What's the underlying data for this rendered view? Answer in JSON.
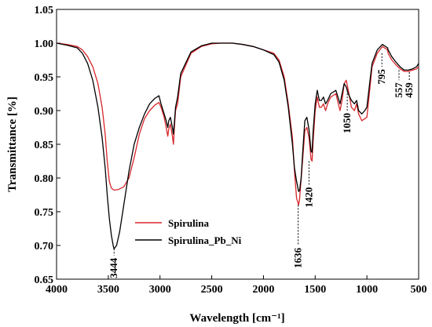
{
  "chart_data": {
    "type": "line",
    "xlabel": "Wavelength [cm⁻¹]",
    "ylabel": "Transmittance [%]",
    "xlim": [
      4000,
      500
    ],
    "ylim": [
      0.65,
      1.05
    ],
    "x_reversed": true,
    "xticks": [
      4000,
      3500,
      3000,
      2500,
      2000,
      1500,
      1000,
      500
    ],
    "yticks": [
      0.65,
      0.7,
      0.75,
      0.8,
      0.85,
      0.9,
      0.95,
      1.0,
      1.05
    ],
    "grid": false,
    "legend_position": "lower-left",
    "series": [
      {
        "name": "Spirulina",
        "color": "#d8262b",
        "points": [
          [
            4000,
            1.0
          ],
          [
            3900,
            0.998
          ],
          [
            3800,
            0.995
          ],
          [
            3750,
            0.99
          ],
          [
            3700,
            0.98
          ],
          [
            3650,
            0.965
          ],
          [
            3600,
            0.94
          ],
          [
            3560,
            0.905
          ],
          [
            3530,
            0.865
          ],
          [
            3510,
            0.825
          ],
          [
            3490,
            0.795
          ],
          [
            3470,
            0.785
          ],
          [
            3444,
            0.782
          ],
          [
            3400,
            0.783
          ],
          [
            3350,
            0.787
          ],
          [
            3300,
            0.8
          ],
          [
            3250,
            0.83
          ],
          [
            3200,
            0.865
          ],
          [
            3150,
            0.888
          ],
          [
            3100,
            0.9
          ],
          [
            3050,
            0.908
          ],
          [
            3010,
            0.912
          ],
          [
            2990,
            0.905
          ],
          [
            2960,
            0.89
          ],
          [
            2940,
            0.875
          ],
          [
            2925,
            0.862
          ],
          [
            2915,
            0.873
          ],
          [
            2900,
            0.88
          ],
          [
            2880,
            0.862
          ],
          [
            2870,
            0.85
          ],
          [
            2860,
            0.878
          ],
          [
            2850,
            0.9
          ],
          [
            2830,
            0.91
          ],
          [
            2800,
            0.95
          ],
          [
            2700,
            0.985
          ],
          [
            2600,
            0.995
          ],
          [
            2500,
            0.999
          ],
          [
            2400,
            1.0
          ],
          [
            2300,
            1.0
          ],
          [
            2200,
            0.998
          ],
          [
            2100,
            0.995
          ],
          [
            2000,
            0.99
          ],
          [
            1900,
            0.985
          ],
          [
            1850,
            0.975
          ],
          [
            1800,
            0.95
          ],
          [
            1760,
            0.91
          ],
          [
            1720,
            0.86
          ],
          [
            1700,
            0.81
          ],
          [
            1680,
            0.77
          ],
          [
            1660,
            0.76
          ],
          [
            1650,
            0.77
          ],
          [
            1636,
            0.798
          ],
          [
            1620,
            0.83
          ],
          [
            1600,
            0.87
          ],
          [
            1580,
            0.875
          ],
          [
            1560,
            0.86
          ],
          [
            1540,
            0.828
          ],
          [
            1530,
            0.825
          ],
          [
            1520,
            0.855
          ],
          [
            1500,
            0.9
          ],
          [
            1480,
            0.92
          ],
          [
            1460,
            0.905
          ],
          [
            1440,
            0.905
          ],
          [
            1420,
            0.91
          ],
          [
            1400,
            0.9
          ],
          [
            1380,
            0.91
          ],
          [
            1350,
            0.92
          ],
          [
            1300,
            0.925
          ],
          [
            1260,
            0.9
          ],
          [
            1240,
            0.915
          ],
          [
            1220,
            0.94
          ],
          [
            1200,
            0.945
          ],
          [
            1180,
            0.93
          ],
          [
            1150,
            0.905
          ],
          [
            1120,
            0.9
          ],
          [
            1100,
            0.91
          ],
          [
            1080,
            0.895
          ],
          [
            1050,
            0.885
          ],
          [
            1020,
            0.888
          ],
          [
            1000,
            0.89
          ],
          [
            970,
            0.935
          ],
          [
            950,
            0.965
          ],
          [
            900,
            0.985
          ],
          [
            850,
            0.995
          ],
          [
            800,
            0.99
          ],
          [
            795,
            0.985
          ],
          [
            760,
            0.975
          ],
          [
            720,
            0.968
          ],
          [
            680,
            0.962
          ],
          [
            640,
            0.958
          ],
          [
            600,
            0.958
          ],
          [
            557,
            0.96
          ],
          [
            520,
            0.962
          ],
          [
            500,
            0.965
          ]
        ]
      },
      {
        "name": "Spirulina_Pb_Ni",
        "color": "#000000",
        "points": [
          [
            4000,
            1.0
          ],
          [
            3900,
            0.997
          ],
          [
            3800,
            0.993
          ],
          [
            3750,
            0.985
          ],
          [
            3700,
            0.97
          ],
          [
            3650,
            0.945
          ],
          [
            3600,
            0.905
          ],
          [
            3560,
            0.86
          ],
          [
            3530,
            0.815
          ],
          [
            3510,
            0.775
          ],
          [
            3490,
            0.74
          ],
          [
            3470,
            0.715
          ],
          [
            3450,
            0.698
          ],
          [
            3444,
            0.695
          ],
          [
            3420,
            0.7
          ],
          [
            3390,
            0.72
          ],
          [
            3350,
            0.76
          ],
          [
            3300,
            0.81
          ],
          [
            3250,
            0.85
          ],
          [
            3200,
            0.875
          ],
          [
            3150,
            0.895
          ],
          [
            3100,
            0.91
          ],
          [
            3050,
            0.918
          ],
          [
            3010,
            0.922
          ],
          [
            2990,
            0.91
          ],
          [
            2960,
            0.895
          ],
          [
            2940,
            0.885
          ],
          [
            2925,
            0.875
          ],
          [
            2915,
            0.885
          ],
          [
            2900,
            0.89
          ],
          [
            2880,
            0.875
          ],
          [
            2870,
            0.865
          ],
          [
            2860,
            0.885
          ],
          [
            2850,
            0.905
          ],
          [
            2830,
            0.92
          ],
          [
            2800,
            0.955
          ],
          [
            2700,
            0.987
          ],
          [
            2600,
            0.996
          ],
          [
            2500,
            1.0
          ],
          [
            2400,
            1.0
          ],
          [
            2300,
            1.0
          ],
          [
            2200,
            0.998
          ],
          [
            2100,
            0.995
          ],
          [
            2000,
            0.99
          ],
          [
            1900,
            0.983
          ],
          [
            1850,
            0.972
          ],
          [
            1800,
            0.945
          ],
          [
            1760,
            0.905
          ],
          [
            1720,
            0.85
          ],
          [
            1700,
            0.815
          ],
          [
            1680,
            0.795
          ],
          [
            1660,
            0.78
          ],
          [
            1650,
            0.782
          ],
          [
            1636,
            0.8
          ],
          [
            1620,
            0.84
          ],
          [
            1600,
            0.885
          ],
          [
            1580,
            0.89
          ],
          [
            1560,
            0.872
          ],
          [
            1540,
            0.84
          ],
          [
            1530,
            0.838
          ],
          [
            1520,
            0.87
          ],
          [
            1500,
            0.91
          ],
          [
            1480,
            0.93
          ],
          [
            1460,
            0.915
          ],
          [
            1440,
            0.915
          ],
          [
            1420,
            0.92
          ],
          [
            1400,
            0.91
          ],
          [
            1380,
            0.915
          ],
          [
            1350,
            0.925
          ],
          [
            1300,
            0.93
          ],
          [
            1260,
            0.91
          ],
          [
            1240,
            0.925
          ],
          [
            1220,
            0.94
          ],
          [
            1200,
            0.935
          ],
          [
            1180,
            0.925
          ],
          [
            1150,
            0.915
          ],
          [
            1120,
            0.91
          ],
          [
            1100,
            0.915
          ],
          [
            1080,
            0.9
          ],
          [
            1050,
            0.895
          ],
          [
            1020,
            0.9
          ],
          [
            1000,
            0.905
          ],
          [
            970,
            0.945
          ],
          [
            950,
            0.97
          ],
          [
            900,
            0.99
          ],
          [
            850,
            0.998
          ],
          [
            800,
            0.993
          ],
          [
            795,
            0.99
          ],
          [
            760,
            0.98
          ],
          [
            720,
            0.972
          ],
          [
            680,
            0.965
          ],
          [
            640,
            0.96
          ],
          [
            600,
            0.96
          ],
          [
            557,
            0.962
          ],
          [
            520,
            0.965
          ],
          [
            500,
            0.97
          ]
        ]
      }
    ],
    "annotations": [
      {
        "text": "3444",
        "x": 3444,
        "y_from": 0.695,
        "y_to": 0.685,
        "side": "below"
      },
      {
        "text": "1636",
        "x": 1665,
        "y_from": 0.76,
        "y_to": 0.7,
        "side": "below"
      },
      {
        "text": "1420",
        "x": 1560,
        "y_from": 0.825,
        "y_to": 0.79,
        "side": "below"
      },
      {
        "text": "1050",
        "x": 1190,
        "y_from": 0.93,
        "y_to": 0.9,
        "side": "below"
      },
      {
        "text": "795",
        "x": 855,
        "y_from": 0.985,
        "y_to": 0.965,
        "side": "below"
      },
      {
        "text": "557",
        "x": 690,
        "y_from": 0.96,
        "y_to": 0.945,
        "side": "below"
      },
      {
        "text": "459",
        "x": 590,
        "y_from": 0.957,
        "y_to": 0.945,
        "side": "below"
      }
    ]
  }
}
